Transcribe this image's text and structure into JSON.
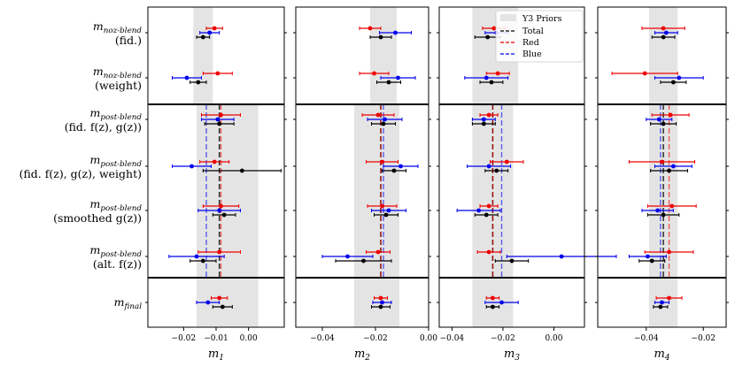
{
  "chart_data": {
    "type": "scatter",
    "subtype": "forest-plot-with-error-bars",
    "rows": [
      {
        "main": "m_{noz-blend}",
        "sub": "(fid.)"
      },
      {
        "main": "m_{noz-blend}",
        "sub": "(weight)"
      },
      {
        "main": "m_{post-blend}",
        "sub": "(fid. f(z), g(z))"
      },
      {
        "main": "m_{post-blend}",
        "sub": "(fid. f(z), g(z), weight)"
      },
      {
        "main": "m_{post-blend}",
        "sub": "(smoothed g(z))"
      },
      {
        "main": "m_{post-blend}",
        "sub": "(alt. f(z))"
      },
      {
        "main": "m_{final}",
        "sub": ""
      }
    ],
    "groups": [
      [
        0,
        1
      ],
      [
        2,
        3,
        4,
        5
      ],
      [
        6
      ]
    ],
    "series": [
      {
        "name": "Total",
        "color": "#000000"
      },
      {
        "name": "Red",
        "color": "#ee0000"
      },
      {
        "name": "Blue",
        "color": "#0000ee"
      }
    ],
    "legend": {
      "priors_label": "Y3 Priors",
      "position": "top-right of panel 3",
      "priors_color": "#e4e4e4"
    },
    "panels": [
      {
        "xlabel": "m_1",
        "xlim": [
          -0.031,
          0.011
        ],
        "ticks": [
          -0.02,
          -0.01,
          0.0
        ],
        "tick_labels": [
          "−0.02",
          "−0.01",
          "0.00"
        ],
        "priors": [
          {
            "groups": [
              0
            ],
            "range": [
              -0.017,
              -0.011
            ]
          },
          {
            "groups": [
              1,
              2
            ],
            "range": [
              -0.016,
              0.003
            ]
          }
        ],
        "vlines": [
          {
            "group": 1,
            "series": "Total",
            "x": -0.009
          },
          {
            "group": 1,
            "series": "Red",
            "x": -0.0085
          },
          {
            "group": 1,
            "series": "Blue",
            "x": -0.013
          }
        ],
        "points": [
          [
            {
              "x": -0.014,
              "err": 0.002
            },
            {
              "x": -0.0105,
              "err": 0.0025
            },
            {
              "x": -0.012,
              "err": 0.003
            }
          ],
          [
            {
              "x": -0.0155,
              "err": 0.0025
            },
            {
              "x": -0.0095,
              "err": 0.0045
            },
            {
              "x": -0.019,
              "err": 0.0045
            }
          ],
          [
            {
              "x": -0.009,
              "err": 0.0045
            },
            {
              "x": -0.0085,
              "err": 0.006
            },
            {
              "x": -0.0095,
              "err": 0.005
            }
          ],
          [
            {
              "x": -0.002,
              "err": 0.012
            },
            {
              "x": -0.0105,
              "err": 0.0045
            },
            {
              "x": -0.0175,
              "err": 0.006
            }
          ],
          [
            {
              "x": -0.0075,
              "err": 0.0035
            },
            {
              "x": -0.0085,
              "err": 0.0055
            },
            {
              "x": -0.009,
              "err": 0.0065
            }
          ],
          [
            {
              "x": -0.014,
              "err": 0.004
            },
            {
              "x": -0.009,
              "err": 0.0065
            },
            {
              "x": -0.016,
              "err": 0.0085
            }
          ],
          [
            {
              "x": -0.008,
              "err": 0.003
            },
            {
              "x": -0.009,
              "err": 0.0025
            },
            {
              "x": -0.0125,
              "err": 0.0035
            }
          ]
        ]
      },
      {
        "xlabel": "m_2",
        "xlim": [
          -0.05,
          0.0
        ],
        "ticks": [
          -0.04,
          -0.02,
          0.0
        ],
        "tick_labels": [
          "−0.04",
          "−0.02",
          "0.00"
        ],
        "priors": [
          {
            "groups": [
              0
            ],
            "range": [
              -0.022,
              -0.012
            ]
          },
          {
            "groups": [
              1,
              2
            ],
            "range": [
              -0.028,
              -0.011
            ]
          }
        ],
        "vlines": [
          {
            "group": 1,
            "series": "Total",
            "x": -0.018
          },
          {
            "group": 1,
            "series": "Red",
            "x": -0.018
          },
          {
            "group": 1,
            "series": "Blue",
            "x": -0.017
          }
        ],
        "points": [
          [
            {
              "x": -0.018,
              "err": 0.004
            },
            {
              "x": -0.022,
              "err": 0.004
            },
            {
              "x": -0.0125,
              "err": 0.006
            }
          ],
          [
            {
              "x": -0.015,
              "err": 0.0045
            },
            {
              "x": -0.0205,
              "err": 0.0055
            },
            {
              "x": -0.0115,
              "err": 0.0065
            }
          ],
          [
            {
              "x": -0.017,
              "err": 0.0045
            },
            {
              "x": -0.019,
              "err": 0.006
            },
            {
              "x": -0.0165,
              "err": 0.0065
            }
          ],
          [
            {
              "x": -0.013,
              "err": 0.0045
            },
            {
              "x": -0.0175,
              "err": 0.006
            },
            {
              "x": -0.0105,
              "err": 0.0065
            }
          ],
          [
            {
              "x": -0.016,
              "err": 0.0045
            },
            {
              "x": -0.0175,
              "err": 0.0055
            },
            {
              "x": -0.015,
              "err": 0.0065
            }
          ],
          [
            {
              "x": -0.0245,
              "err": 0.0105
            },
            {
              "x": -0.019,
              "err": 0.0045
            },
            {
              "x": -0.0305,
              "err": 0.0095
            }
          ],
          [
            {
              "x": -0.018,
              "err": 0.0035
            },
            {
              "x": -0.018,
              "err": 0.0025
            },
            {
              "x": -0.0175,
              "err": 0.0035
            }
          ]
        ]
      },
      {
        "xlabel": "m_3",
        "xlim": [
          -0.045,
          0.012
        ],
        "ticks": [
          -0.04,
          -0.02,
          0.0
        ],
        "tick_labels": [
          "−0.04",
          "−0.02",
          "0.00"
        ],
        "priors": [
          {
            "groups": [
              0
            ],
            "range": [
              -0.032,
              -0.014
            ]
          },
          {
            "groups": [
              1,
              2
            ],
            "range": [
              -0.032,
              -0.016
            ]
          }
        ],
        "vlines": [
          {
            "group": 1,
            "series": "Total",
            "x": -0.024
          },
          {
            "group": 1,
            "series": "Red",
            "x": -0.024
          },
          {
            "group": 1,
            "series": "Blue",
            "x": -0.0205
          }
        ],
        "points": [
          [
            {
              "x": -0.026,
              "err": 0.005
            },
            {
              "x": -0.0235,
              "err": 0.0045
            },
            {
              "x": -0.0225,
              "err": 0.0045
            }
          ],
          [
            {
              "x": -0.0245,
              "err": 0.0045
            },
            {
              "x": -0.022,
              "err": 0.0045
            },
            {
              "x": -0.0265,
              "err": 0.0085
            }
          ],
          [
            {
              "x": -0.0275,
              "err": 0.0045
            },
            {
              "x": -0.0255,
              "err": 0.0035
            },
            {
              "x": -0.0275,
              "err": 0.0045
            }
          ],
          [
            {
              "x": -0.0225,
              "err": 0.0045
            },
            {
              "x": -0.0185,
              "err": 0.0065
            },
            {
              "x": -0.0255,
              "err": 0.0085
            }
          ],
          [
            {
              "x": -0.0265,
              "err": 0.0045
            },
            {
              "x": -0.0255,
              "err": 0.0035
            },
            {
              "x": -0.0295,
              "err": 0.0085
            }
          ],
          [
            {
              "x": -0.0165,
              "err": 0.0065
            },
            {
              "x": -0.0255,
              "err": 0.0045
            },
            {
              "x": 0.003,
              "err": 0.0215
            }
          ],
          [
            {
              "x": -0.024,
              "err": 0.0025
            },
            {
              "x": -0.024,
              "err": 0.0025
            },
            {
              "x": -0.0205,
              "err": 0.0065
            }
          ]
        ]
      },
      {
        "xlabel": "m_4",
        "xlim": [
          -0.057,
          -0.012
        ],
        "ticks": [
          -0.04,
          -0.02
        ],
        "tick_labels": [
          "−0.04",
          "−0.02"
        ],
        "priors": [
          {
            "groups": [
              0,
              1,
              2
            ],
            "range": [
              -0.039,
              -0.029
            ]
          }
        ],
        "vlines": [
          {
            "group": 1,
            "series": "Total",
            "x": -0.034
          },
          {
            "group": 1,
            "series": "Red",
            "x": -0.032
          },
          {
            "group": 1,
            "series": "Blue",
            "x": -0.035
          }
        ],
        "points": [
          [
            {
              "x": -0.034,
              "err": 0.004
            },
            {
              "x": -0.034,
              "err": 0.0075
            },
            {
              "x": -0.033,
              "err": 0.004
            }
          ],
          [
            {
              "x": -0.0305,
              "err": 0.0045
            },
            {
              "x": -0.0405,
              "err": 0.0115
            },
            {
              "x": -0.0285,
              "err": 0.0085
            }
          ],
          [
            {
              "x": -0.034,
              "err": 0.0045
            },
            {
              "x": -0.0315,
              "err": 0.0065
            },
            {
              "x": -0.0355,
              "err": 0.0045
            }
          ],
          [
            {
              "x": -0.032,
              "err": 0.0065
            },
            {
              "x": -0.0345,
              "err": 0.0115
            },
            {
              "x": -0.0305,
              "err": 0.0065
            }
          ],
          [
            {
              "x": -0.034,
              "err": 0.0055
            },
            {
              "x": -0.031,
              "err": 0.0085
            },
            {
              "x": -0.036,
              "err": 0.0055
            }
          ],
          [
            {
              "x": -0.038,
              "err": 0.0045
            },
            {
              "x": -0.032,
              "err": 0.0085
            },
            {
              "x": -0.0395,
              "err": 0.0065
            }
          ],
          [
            {
              "x": -0.035,
              "err": 0.0025
            },
            {
              "x": -0.032,
              "err": 0.0045
            },
            {
              "x": -0.0345,
              "err": 0.0025
            }
          ]
        ]
      }
    ]
  }
}
